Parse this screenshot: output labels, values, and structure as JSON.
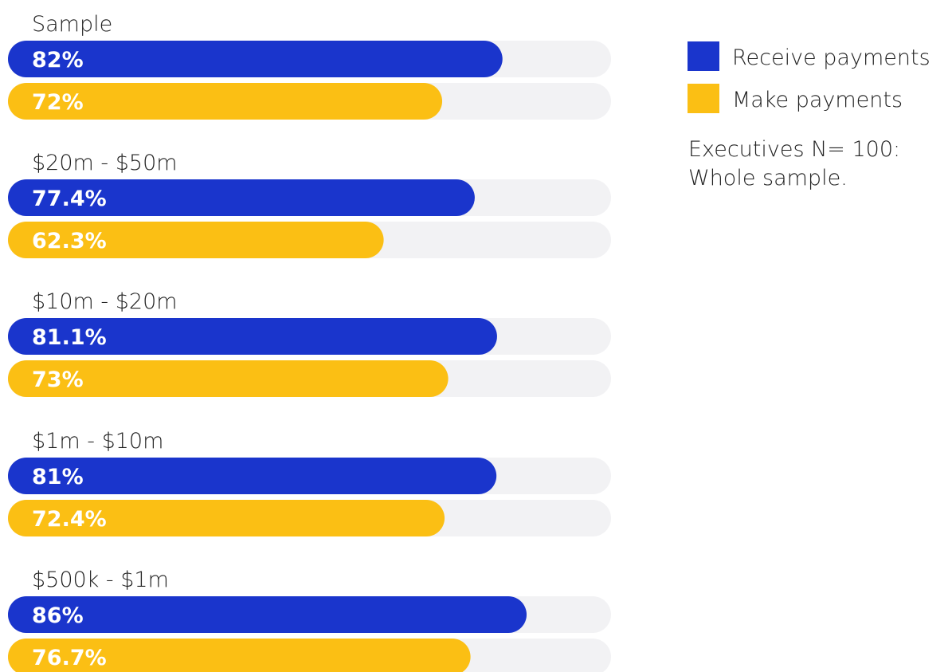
{
  "chart_data": {
    "type": "bar",
    "orientation": "horizontal",
    "categories": [
      "Sample",
      "$20m - $50m",
      "$10m - $20m",
      "$1m - $10m",
      "$500k - $1m"
    ],
    "series": [
      {
        "name": "Receive payments",
        "color": "#1a35cc",
        "values": [
          82,
          77.4,
          81.1,
          81,
          86
        ],
        "labels": [
          "82%",
          "77.4%",
          "81.1%",
          "81%",
          "86%"
        ]
      },
      {
        "name": "Make payments",
        "color": "#fbbf14",
        "values": [
          72,
          62.3,
          73,
          72.4,
          76.7
        ],
        "labels": [
          "72%",
          "62.3%",
          "73%",
          "72.4%",
          "76.7%"
        ]
      }
    ],
    "track_color": "#f2f2f4",
    "xlim": [
      0,
      100
    ],
    "legend_position": "top-right",
    "note": [
      "Executives N= 100:",
      "Whole sample."
    ]
  }
}
